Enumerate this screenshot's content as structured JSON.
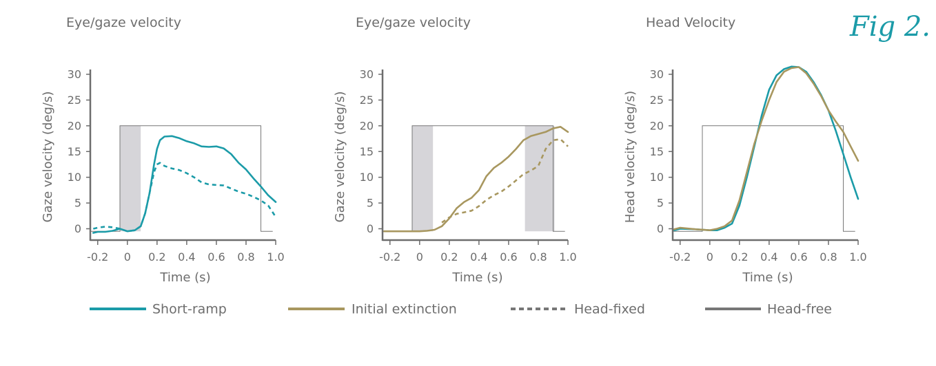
{
  "figure_label": "Fig 2.",
  "legend": [
    "Short-ramp",
    "Initial extinction",
    "Head-fixed",
    "Head-free"
  ],
  "chart_data": [
    {
      "type": "line",
      "title": "Eye/gaze velocity",
      "xlabel": "Time (s)",
      "ylabel": "Gaze velocity (deg/s)",
      "xlim": [
        -0.25,
        1.0
      ],
      "ylim": [
        -2,
        30
      ],
      "xticks": [
        -0.2,
        0,
        0.2,
        0.4,
        0.6,
        0.8,
        1.0
      ],
      "xtick_labels": [
        "-0.2",
        "0",
        "0.2",
        "0.4",
        "0.6",
        "0.8",
        "1.0"
      ],
      "yticks": [
        0,
        5,
        10,
        15,
        20,
        25,
        30
      ],
      "target_profile": {
        "x": [
          -0.25,
          -0.05,
          -0.05,
          0.9,
          0.9,
          0.98
        ],
        "y": [
          -0.5,
          -0.5,
          20,
          20,
          -0.5,
          -0.5
        ]
      },
      "shaded": [
        [
          -0.05,
          0.09
        ]
      ],
      "series": [
        {
          "name": "Short-ramp",
          "style": "solid",
          "color": "#1b9ba8",
          "x": [
            -0.23,
            -0.2,
            -0.15,
            -0.1,
            -0.05,
            0.0,
            0.05,
            0.09,
            0.12,
            0.15,
            0.18,
            0.2,
            0.22,
            0.25,
            0.3,
            0.35,
            0.4,
            0.45,
            0.5,
            0.55,
            0.6,
            0.65,
            0.7,
            0.75,
            0.8,
            0.85,
            0.9,
            0.95,
            1.0
          ],
          "y": [
            -0.8,
            -0.6,
            -0.6,
            -0.4,
            0.0,
            -0.5,
            -0.3,
            0.5,
            3.0,
            7.0,
            12.5,
            15.5,
            17.2,
            17.9,
            18.0,
            17.6,
            17.0,
            16.6,
            16.0,
            15.9,
            16.0,
            15.6,
            14.5,
            12.8,
            11.5,
            9.8,
            8.2,
            6.5,
            5.2
          ]
        },
        {
          "name": "Head-fixed",
          "style": "dashed",
          "color": "#1b9ba8",
          "x": [
            -0.23,
            -0.2,
            -0.15,
            -0.1,
            -0.05,
            0.0,
            0.05,
            0.09,
            0.12,
            0.15,
            0.18,
            0.2,
            0.22,
            0.25,
            0.3,
            0.35,
            0.4,
            0.45,
            0.5,
            0.55,
            0.6,
            0.65,
            0.7,
            0.75,
            0.8,
            0.85,
            0.9,
            0.95,
            1.0
          ],
          "y": [
            0.0,
            0.2,
            0.4,
            0.3,
            0.0,
            -0.5,
            -0.3,
            0.5,
            3.0,
            7.0,
            11.0,
            12.5,
            12.8,
            12.2,
            11.7,
            11.4,
            10.8,
            10.0,
            9.0,
            8.6,
            8.5,
            8.4,
            7.8,
            7.2,
            6.8,
            6.2,
            5.5,
            4.5,
            2.3
          ]
        }
      ]
    },
    {
      "type": "line",
      "title": "Eye/gaze velocity",
      "xlabel": "Time (s)",
      "ylabel": "Gaze velocity (deg/s)",
      "xlim": [
        -0.25,
        1.0
      ],
      "ylim": [
        -2,
        30
      ],
      "xticks": [
        -0.2,
        0,
        0.2,
        0.4,
        0.6,
        0.8,
        1.0
      ],
      "xtick_labels": [
        "-0.2",
        "0",
        "0.2",
        "0.4",
        "0.6",
        "0.8",
        "1.0"
      ],
      "yticks": [
        0,
        5,
        10,
        15,
        20,
        25,
        30
      ],
      "target_profile": {
        "x": [
          -0.25,
          -0.05,
          -0.05,
          0.9,
          0.9,
          0.98
        ],
        "y": [
          -0.5,
          -0.5,
          20,
          20,
          -0.5,
          -0.5
        ]
      },
      "shaded": [
        [
          -0.05,
          0.09
        ],
        [
          0.71,
          0.91
        ]
      ],
      "series": [
        {
          "name": "Initial extinction",
          "style": "solid",
          "color": "#a8975f",
          "x": [
            -0.24,
            -0.1,
            0.0,
            0.05,
            0.1,
            0.15,
            0.2,
            0.25,
            0.3,
            0.35,
            0.4,
            0.45,
            0.5,
            0.55,
            0.6,
            0.65,
            0.7,
            0.75,
            0.8,
            0.85,
            0.9,
            0.95,
            1.0
          ],
          "y": [
            -0.5,
            -0.5,
            -0.5,
            -0.4,
            -0.2,
            0.5,
            2.0,
            4.0,
            5.2,
            6.0,
            7.5,
            10.2,
            11.8,
            12.8,
            14.0,
            15.5,
            17.2,
            18.0,
            18.4,
            18.8,
            19.5,
            19.8,
            18.8
          ]
        },
        {
          "name": "Head-fixed",
          "style": "dashed",
          "color": "#a8975f",
          "x": [
            0.15,
            0.2,
            0.25,
            0.3,
            0.35,
            0.4,
            0.45,
            0.5,
            0.55,
            0.6,
            0.65,
            0.7,
            0.75,
            0.8,
            0.85,
            0.9,
            0.95,
            1.0
          ],
          "y": [
            1.2,
            2.2,
            2.9,
            3.2,
            3.5,
            4.4,
            5.6,
            6.5,
            7.2,
            8.2,
            9.4,
            10.6,
            11.3,
            12.2,
            15.5,
            17.2,
            17.4,
            16.0
          ]
        }
      ]
    },
    {
      "type": "line",
      "title": "Head Velocity",
      "xlabel": "Time (s)",
      "ylabel": "Head velocity (deg/s)",
      "xlim": [
        -0.25,
        1.0
      ],
      "ylim": [
        -2,
        30
      ],
      "xticks": [
        -0.2,
        0,
        0.2,
        0.4,
        0.6,
        0.8,
        1.0
      ],
      "xtick_labels": [
        "-0.2",
        "0",
        "0.2",
        "0.4",
        "0.6",
        "0.8",
        "1.0"
      ],
      "yticks": [
        0,
        5,
        10,
        15,
        20,
        25,
        30
      ],
      "target_profile": {
        "x": [
          -0.25,
          -0.05,
          -0.05,
          0.9,
          0.9,
          0.98
        ],
        "y": [
          -0.5,
          -0.5,
          20,
          20,
          -0.5,
          -0.5
        ]
      },
      "shaded": [],
      "series": [
        {
          "name": "Short-ramp",
          "style": "solid",
          "color": "#1b9ba8",
          "x": [
            -0.24,
            -0.2,
            -0.1,
            0.0,
            0.05,
            0.1,
            0.15,
            0.2,
            0.25,
            0.3,
            0.35,
            0.4,
            0.45,
            0.5,
            0.55,
            0.6,
            0.65,
            0.7,
            0.75,
            0.8,
            0.85,
            0.9,
            0.95,
            1.0
          ],
          "y": [
            -0.3,
            0.0,
            -0.1,
            -0.3,
            -0.3,
            0.2,
            1.0,
            4.5,
            10.0,
            16.0,
            22.0,
            27.0,
            29.8,
            31.0,
            31.5,
            31.4,
            30.5,
            28.5,
            26.0,
            23.0,
            19.0,
            14.5,
            10.0,
            5.8
          ]
        },
        {
          "name": "Initial extinction",
          "style": "solid",
          "color": "#a8975f",
          "x": [
            -0.24,
            -0.2,
            -0.1,
            0.0,
            0.05,
            0.1,
            0.15,
            0.2,
            0.25,
            0.3,
            0.35,
            0.4,
            0.45,
            0.5,
            0.55,
            0.6,
            0.65,
            0.7,
            0.75,
            0.8,
            0.85,
            0.9,
            0.95,
            1.0
          ],
          "y": [
            -0.1,
            0.2,
            -0.1,
            -0.3,
            0.0,
            0.5,
            1.6,
            5.5,
            11.0,
            16.5,
            21.0,
            25.0,
            28.5,
            30.5,
            31.2,
            31.4,
            30.2,
            28.2,
            25.8,
            23.0,
            20.8,
            18.8,
            16.0,
            13.2
          ]
        }
      ]
    }
  ]
}
